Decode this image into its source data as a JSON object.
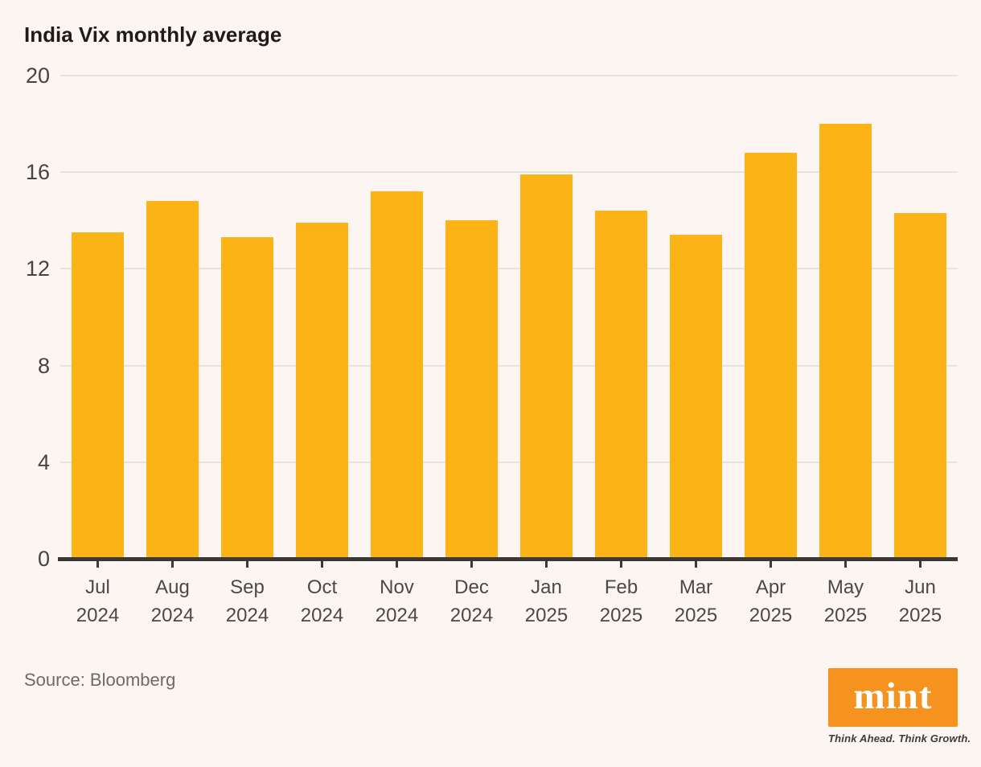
{
  "title": "India Vix monthly average",
  "source": "Source: Bloomberg",
  "logo": {
    "text": "mint",
    "tagline": "Think Ahead. Think Growth.",
    "box_color": "#f6921e",
    "text_color": "#ffffff"
  },
  "colors": {
    "background": "#fdf5f1",
    "bar": "#fcb316",
    "gridline": "#e8e2df",
    "axis_line": "#3b3836",
    "title_text": "#1e1c1a",
    "y_tick_label": "#454442",
    "x_label": "#4a4947",
    "source_text": "#6e6a67"
  },
  "chart_data": {
    "type": "bar",
    "title": "India Vix monthly average",
    "categories": [
      {
        "month": "Jul",
        "year": "2024"
      },
      {
        "month": "Aug",
        "year": "2024"
      },
      {
        "month": "Sep",
        "year": "2024"
      },
      {
        "month": "Oct",
        "year": "2024"
      },
      {
        "month": "Nov",
        "year": "2024"
      },
      {
        "month": "Dec",
        "year": "2024"
      },
      {
        "month": "Jan",
        "year": "2025"
      },
      {
        "month": "Feb",
        "year": "2025"
      },
      {
        "month": "Mar",
        "year": "2025"
      },
      {
        "month": "Apr",
        "year": "2025"
      },
      {
        "month": "May",
        "year": "2025"
      },
      {
        "month": "Jun",
        "year": "2025"
      }
    ],
    "values": [
      13.5,
      14.8,
      13.3,
      13.9,
      15.2,
      14.0,
      15.9,
      14.4,
      13.4,
      16.8,
      18.0,
      14.3
    ],
    "xlabel": "",
    "ylabel": "",
    "ylim": [
      0,
      20
    ],
    "yticks": [
      0,
      4,
      8,
      12,
      16,
      20
    ],
    "grid": "horizontal",
    "legend": "none",
    "bar_color": "#fcb316"
  }
}
